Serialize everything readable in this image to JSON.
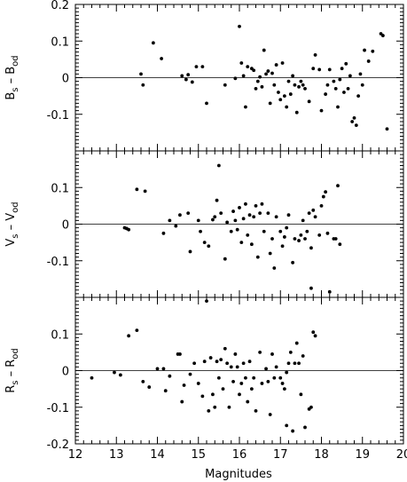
{
  "chart_data": {
    "type": "scatter",
    "xlabel": "Magnitudes",
    "xlim": [
      12,
      20
    ],
    "x_ticks": [
      12,
      13,
      14,
      15,
      16,
      17,
      18,
      19,
      20
    ],
    "x_tick_labels": [
      "12",
      "13",
      "14",
      "15",
      "16",
      "17",
      "18",
      "19",
      "20"
    ],
    "panels": [
      {
        "ylabel": "B",
        "ylabel_sub_left": "s",
        "ylabel_sep": " – B",
        "ylabel_sub_right": "od",
        "ylim": [
          -0.2,
          0.2
        ],
        "y_ticks": [
          -0.1,
          0,
          0.1,
          0.2
        ],
        "y_tick_labels": [
          "-0.1",
          "0",
          "0.1",
          "0.2"
        ],
        "zero_line": 0,
        "points": [
          [
            13.6,
            0.01
          ],
          [
            13.65,
            -0.02
          ],
          [
            13.9,
            0.095
          ],
          [
            14.1,
            0.052
          ],
          [
            14.6,
            0.005
          ],
          [
            14.7,
            -0.005
          ],
          [
            14.75,
            0.008
          ],
          [
            14.85,
            -0.012
          ],
          [
            14.95,
            0.03
          ],
          [
            15.1,
            0.03
          ],
          [
            15.2,
            -0.07
          ],
          [
            15.65,
            -0.02
          ],
          [
            15.9,
            -0.002
          ],
          [
            16.0,
            0.14
          ],
          [
            16.1,
            0.005
          ],
          [
            16.15,
            -0.08
          ],
          [
            16.2,
            0.03
          ],
          [
            16.3,
            0.025
          ],
          [
            16.35,
            0.02
          ],
          [
            16.45,
            -0.01
          ],
          [
            16.5,
            0.002
          ],
          [
            16.55,
            -0.025
          ],
          [
            16.6,
            0.075
          ],
          [
            16.65,
            0.01
          ],
          [
            16.7,
            0.018
          ],
          [
            16.75,
            -0.07
          ],
          [
            16.8,
            0.012
          ],
          [
            16.85,
            -0.02
          ],
          [
            16.9,
            0.035
          ],
          [
            16.95,
            -0.04
          ],
          [
            17.0,
            -0.06
          ],
          [
            17.05,
            0.04
          ],
          [
            17.1,
            -0.05
          ],
          [
            17.15,
            -0.08
          ],
          [
            17.2,
            -0.01
          ],
          [
            17.3,
            0.005
          ],
          [
            17.35,
            -0.02
          ],
          [
            17.4,
            -0.095
          ],
          [
            17.45,
            -0.025
          ],
          [
            17.5,
            -0.01
          ],
          [
            17.55,
            -0.02
          ],
          [
            17.6,
            -0.03
          ],
          [
            17.7,
            -0.065
          ],
          [
            17.8,
            0.025
          ],
          [
            17.85,
            0.062
          ],
          [
            17.95,
            0.022
          ],
          [
            18.1,
            -0.045
          ],
          [
            18.15,
            -0.02
          ],
          [
            18.2,
            0.022
          ],
          [
            18.3,
            -0.01
          ],
          [
            18.35,
            -0.03
          ],
          [
            18.4,
            -0.08
          ],
          [
            18.45,
            -0.005
          ],
          [
            18.5,
            0.025
          ],
          [
            18.55,
            -0.04
          ],
          [
            18.6,
            0.038
          ],
          [
            18.65,
            -0.03
          ],
          [
            18.7,
            0.005
          ],
          [
            18.75,
            -0.12
          ],
          [
            18.8,
            -0.11
          ],
          [
            18.85,
            -0.13
          ],
          [
            18.9,
            -0.05
          ],
          [
            18.95,
            0.01
          ],
          [
            19.0,
            -0.02
          ],
          [
            19.05,
            0.075
          ],
          [
            19.15,
            0.045
          ],
          [
            19.25,
            0.072
          ],
          [
            19.45,
            0.12
          ],
          [
            19.5,
            0.115
          ],
          [
            19.6,
            -0.14
          ],
          [
            16.05,
            0.04
          ],
          [
            17.25,
            -0.045
          ],
          [
            18.0,
            -0.09
          ],
          [
            16.4,
            -0.03
          ]
        ]
      },
      {
        "ylabel": "V",
        "ylabel_sub_left": "s",
        "ylabel_sep": " – V",
        "ylabel_sub_right": "od",
        "ylim": [
          -0.2,
          0.2
        ],
        "y_ticks": [
          -0.1,
          0,
          0.1
        ],
        "y_tick_labels": [
          "-0.1",
          "0",
          "0.1"
        ],
        "zero_line": 0,
        "points": [
          [
            13.2,
            -0.01
          ],
          [
            13.25,
            -0.012
          ],
          [
            13.3,
            -0.015
          ],
          [
            13.5,
            0.095
          ],
          [
            13.7,
            0.09
          ],
          [
            14.15,
            -0.025
          ],
          [
            14.3,
            0.01
          ],
          [
            14.45,
            -0.005
          ],
          [
            14.55,
            0.025
          ],
          [
            14.75,
            0.03
          ],
          [
            14.8,
            -0.075
          ],
          [
            15.0,
            0.01
          ],
          [
            15.05,
            -0.02
          ],
          [
            15.15,
            -0.05
          ],
          [
            15.25,
            -0.06
          ],
          [
            15.35,
            0.012
          ],
          [
            15.4,
            0.02
          ],
          [
            15.45,
            0.065
          ],
          [
            15.5,
            0.16
          ],
          [
            15.55,
            0.03
          ],
          [
            15.65,
            -0.095
          ],
          [
            15.7,
            0.005
          ],
          [
            15.8,
            -0.02
          ],
          [
            15.85,
            0.035
          ],
          [
            15.9,
            0.01
          ],
          [
            16.0,
            0.045
          ],
          [
            16.05,
            -0.05
          ],
          [
            16.1,
            0.015
          ],
          [
            16.15,
            0.055
          ],
          [
            16.2,
            -0.03
          ],
          [
            16.25,
            0.025
          ],
          [
            16.3,
            -0.055
          ],
          [
            16.35,
            0.02
          ],
          [
            16.45,
            -0.09
          ],
          [
            16.5,
            0.03
          ],
          [
            16.55,
            0.055
          ],
          [
            16.6,
            -0.02
          ],
          [
            16.7,
            0.03
          ],
          [
            16.75,
            -0.08
          ],
          [
            16.8,
            -0.04
          ],
          [
            16.85,
            -0.12
          ],
          [
            16.9,
            0.02
          ],
          [
            17.0,
            -0.02
          ],
          [
            17.05,
            -0.06
          ],
          [
            17.1,
            -0.035
          ],
          [
            17.2,
            0.025
          ],
          [
            17.3,
            -0.105
          ],
          [
            17.35,
            -0.04
          ],
          [
            17.5,
            -0.03
          ],
          [
            17.55,
            0.01
          ],
          [
            17.6,
            -0.04
          ],
          [
            17.65,
            -0.02
          ],
          [
            17.7,
            0.03
          ],
          [
            17.75,
            -0.065
          ],
          [
            17.8,
            0.038
          ],
          [
            17.85,
            0.02
          ],
          [
            17.95,
            -0.03
          ],
          [
            18.0,
            0.05
          ],
          [
            18.05,
            0.075
          ],
          [
            18.1,
            0.088
          ],
          [
            18.15,
            -0.025
          ],
          [
            18.2,
            -0.185
          ],
          [
            18.3,
            -0.04
          ],
          [
            18.4,
            0.105
          ],
          [
            18.45,
            -0.055
          ],
          [
            17.75,
            -0.175
          ],
          [
            15.95,
            -0.015
          ],
          [
            16.4,
            0.05
          ],
          [
            17.15,
            -0.01
          ],
          [
            17.45,
            -0.045
          ],
          [
            18.35,
            -0.04
          ]
        ]
      },
      {
        "ylabel": "R",
        "ylabel_sub_left": "s",
        "ylabel_sep": " – R",
        "ylabel_sub_right": "od",
        "ylim": [
          -0.2,
          0.2
        ],
        "y_ticks": [
          -0.2,
          -0.1,
          0,
          0.1
        ],
        "y_tick_labels": [
          "-0.2",
          "-0.1",
          "0",
          "0.1"
        ],
        "zero_line": 0,
        "points": [
          [
            12.4,
            -0.02
          ],
          [
            12.95,
            -0.005
          ],
          [
            13.1,
            -0.012
          ],
          [
            13.3,
            0.095
          ],
          [
            13.5,
            0.11
          ],
          [
            13.65,
            -0.03
          ],
          [
            13.8,
            -0.045
          ],
          [
            14.0,
            0.005
          ],
          [
            14.15,
            0.005
          ],
          [
            14.2,
            -0.055
          ],
          [
            14.3,
            -0.015
          ],
          [
            14.5,
            0.045
          ],
          [
            14.55,
            0.045
          ],
          [
            14.6,
            -0.085
          ],
          [
            14.65,
            -0.04
          ],
          [
            14.8,
            -0.01
          ],
          [
            14.9,
            0.02
          ],
          [
            15.0,
            -0.035
          ],
          [
            15.1,
            -0.07
          ],
          [
            15.15,
            0.025
          ],
          [
            15.2,
            0.19
          ],
          [
            15.25,
            -0.11
          ],
          [
            15.3,
            0.035
          ],
          [
            15.35,
            -0.065
          ],
          [
            15.4,
            -0.1
          ],
          [
            15.45,
            0.025
          ],
          [
            15.5,
            -0.02
          ],
          [
            15.55,
            0.03
          ],
          [
            15.6,
            -0.05
          ],
          [
            15.65,
            0.06
          ],
          [
            15.7,
            0.02
          ],
          [
            15.75,
            -0.1
          ],
          [
            15.8,
            0.01
          ],
          [
            15.85,
            -0.03
          ],
          [
            15.9,
            0.045
          ],
          [
            15.95,
            0.01
          ],
          [
            16.0,
            -0.065
          ],
          [
            16.05,
            -0.035
          ],
          [
            16.1,
            0.02
          ],
          [
            16.15,
            -0.02
          ],
          [
            16.2,
            -0.085
          ],
          [
            16.25,
            0.025
          ],
          [
            16.35,
            -0.02
          ],
          [
            16.4,
            -0.11
          ],
          [
            16.5,
            0.05
          ],
          [
            16.55,
            -0.035
          ],
          [
            16.65,
            0.005
          ],
          [
            16.7,
            -0.03
          ],
          [
            16.75,
            -0.12
          ],
          [
            16.8,
            0.045
          ],
          [
            16.85,
            -0.02
          ],
          [
            16.9,
            0.01
          ],
          [
            17.0,
            -0.02
          ],
          [
            17.05,
            -0.035
          ],
          [
            17.1,
            -0.05
          ],
          [
            17.15,
            -0.15
          ],
          [
            17.2,
            0.02
          ],
          [
            17.25,
            0.05
          ],
          [
            17.3,
            -0.165
          ],
          [
            17.35,
            0.02
          ],
          [
            17.4,
            0.075
          ],
          [
            17.45,
            0.02
          ],
          [
            17.5,
            -0.065
          ],
          [
            17.55,
            0.04
          ],
          [
            17.6,
            -0.155
          ],
          [
            17.7,
            -0.105
          ],
          [
            17.75,
            -0.1
          ],
          [
            17.8,
            0.105
          ],
          [
            17.85,
            0.095
          ],
          [
            17.15,
            -0.005
          ],
          [
            16.3,
            -0.05
          ]
        ]
      }
    ]
  }
}
